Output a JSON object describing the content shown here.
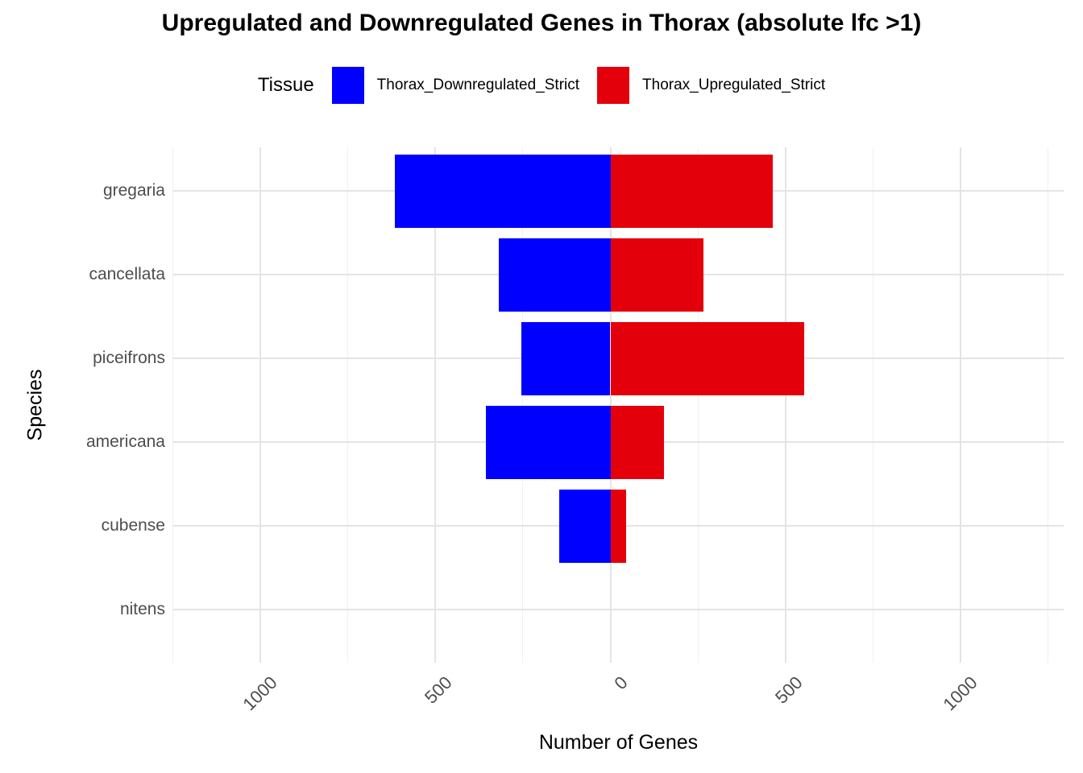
{
  "title": "Upregulated and Downregulated Genes in Thorax (absolute lfc >1)",
  "legend": {
    "title": "Tissue",
    "items": [
      {
        "label": "Thorax_Downregulated_Strict",
        "color": "#0000FF"
      },
      {
        "label": "Thorax_Upregulated_Strict",
        "color": "#E3000B"
      }
    ]
  },
  "chart_data": {
    "type": "bar",
    "orientation": "horizontal-diverging",
    "title": "Upregulated and Downregulated Genes in Thorax (absolute lfc >1)",
    "xlabel": "Number of Genes",
    "ylabel": "Species",
    "categories": [
      "gregaria",
      "cancellata",
      "piceifrons",
      "americana",
      "cubense",
      "nitens"
    ],
    "series": [
      {
        "name": "Thorax_Downregulated_Strict",
        "direction": "negative",
        "color": "#0000FF",
        "values": [
          616,
          320,
          255,
          356,
          146,
          0
        ]
      },
      {
        "name": "Thorax_Upregulated_Strict",
        "direction": "positive",
        "color": "#E3000B",
        "values": [
          464,
          266,
          553,
          154,
          45,
          0
        ]
      }
    ],
    "xlim": [
      -1249,
      1295
    ],
    "x_ticks": [
      {
        "value": -1000,
        "label": "1000"
      },
      {
        "value": -500,
        "label": "500"
      },
      {
        "value": 0,
        "label": "0"
      },
      {
        "value": 500,
        "label": "500"
      },
      {
        "value": 1000,
        "label": "1000"
      }
    ],
    "x_minor_ticks": [
      -1250,
      -750,
      -250,
      250,
      750,
      1250
    ],
    "grid": true,
    "legend_position": "top",
    "colors": {
      "grid_major": "#e4e4e4",
      "grid_minor": "#f0f0f0",
      "tick_text": "#4d4d4d",
      "axis_text": "#000000"
    }
  }
}
